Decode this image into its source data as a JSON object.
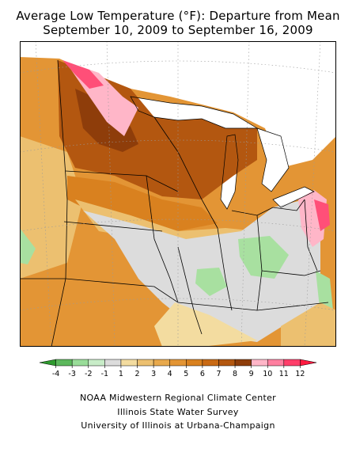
{
  "title": {
    "line1": "Average Low Temperature (°F): Departure from Mean",
    "line2": "September 10, 2009 to September 16, 2009"
  },
  "legend": {
    "labels": [
      "-4",
      "-3",
      "-2",
      "-1",
      "1",
      "2",
      "3",
      "4",
      "5",
      "6",
      "7",
      "8",
      "9",
      "10",
      "11",
      "12"
    ],
    "colors": [
      "#2e9a2e",
      "#5cb85c",
      "#99dd99",
      "#c8ecc8",
      "#dcdcdc",
      "#f3dca0",
      "#ecc070",
      "#e8a94c",
      "#e39535",
      "#d9811f",
      "#c96a14",
      "#b35710",
      "#8e3d0a",
      "#ffb6c8",
      "#ff7fa0",
      "#ff3f6a",
      "#ff1a40"
    ]
  },
  "credits": {
    "line1": "NOAA Midwestern Regional Climate Center",
    "line2": "Illinois State Water Survey",
    "line3": "University of Illinois at Urbana-Champaign"
  },
  "map": {
    "region": "Midwestern United States",
    "fills": {
      "water": "#ffffff",
      "gray": "#dcdcdc",
      "green": "#a8e0a0",
      "tan": "#f3dca0",
      "lightorange": "#ecc070",
      "orange": "#e39535",
      "darkorange": "#d9811f",
      "brown": "#b35710",
      "darkbrown": "#8e3d0a",
      "pink": "#ffb6c8",
      "hotpink": "#ff4f78"
    }
  }
}
